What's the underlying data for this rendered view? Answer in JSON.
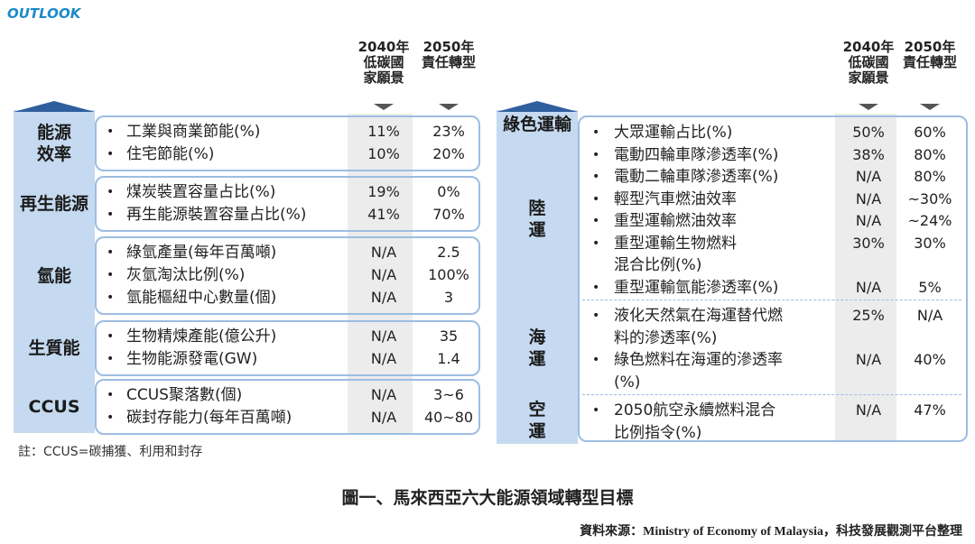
{
  "logo": "OUTLOOK",
  "left": {
    "headers": [
      [
        "2040年",
        "低碳國",
        "家願景"
      ],
      [
        "2050年",
        "責任轉型"
      ]
    ],
    "sections": [
      {
        "label": [
          "能源",
          "效率"
        ],
        "rows": [
          {
            "item": [
              "工業與商業節能(%)"
            ],
            "v2040": "11%",
            "v2050": "23%"
          },
          {
            "item": [
              "住宅節能(%)"
            ],
            "v2040": "10%",
            "v2050": "20%"
          }
        ]
      },
      {
        "label": [
          "再生能源"
        ],
        "rows": [
          {
            "item": [
              "煤炭裝置容量占比(%)"
            ],
            "v2040": "19%",
            "v2050": "0%"
          },
          {
            "item": [
              "再生能源裝置容量占比(%)"
            ],
            "v2040": "41%",
            "v2050": "70%"
          }
        ]
      },
      {
        "label": [
          "氫能"
        ],
        "rows": [
          {
            "item": [
              "綠氫產量(每年百萬噸)"
            ],
            "v2040": "N/A",
            "v2050": "2.5"
          },
          {
            "item": [
              "灰氫淘汰比例(%)"
            ],
            "v2040": "N/A",
            "v2050": "100%"
          },
          {
            "item": [
              "氫能樞紐中心數量(個)"
            ],
            "v2040": "N/A",
            "v2050": "3"
          }
        ]
      },
      {
        "label": [
          "生質能"
        ],
        "rows": [
          {
            "item": [
              "生物精煉產能(億公升)"
            ],
            "v2040": "N/A",
            "v2050": "35"
          },
          {
            "item": [
              "生物能源發電(GW)"
            ],
            "v2040": "N/A",
            "v2050": "1.4"
          }
        ]
      },
      {
        "label": [
          "CCUS"
        ],
        "rows": [
          {
            "item": [
              "CCUS聚落數(個)"
            ],
            "v2040": "N/A",
            "v2050": "3~6"
          },
          {
            "item": [
              "碳封存能力(每年百萬噸)"
            ],
            "v2040": "N/A",
            "v2050": "40~80"
          }
        ]
      }
    ]
  },
  "note": "註：CCUS=碳捕獲、利用和封存",
  "right": {
    "headers": [
      [
        "2040年",
        "低碳國",
        "家願景"
      ],
      [
        "2050年",
        "責任轉型"
      ]
    ],
    "group": "綠色運輸",
    "sections": [
      {
        "label": [
          "陸",
          "運"
        ],
        "rows": [
          {
            "item": [
              "大眾運輸占比(%)"
            ],
            "v2040": "50%",
            "v2050": "60%"
          },
          {
            "item": [
              "電動四輪車隊滲透率(%)"
            ],
            "v2040": "38%",
            "v2050": "80%"
          },
          {
            "item": [
              "電動二輪車隊滲透率(%)"
            ],
            "v2040": "N/A",
            "v2050": "80%"
          },
          {
            "item": [
              "輕型汽車燃油效率"
            ],
            "v2040": "N/A",
            "v2050": "~30%"
          },
          {
            "item": [
              "重型運輸燃油效率"
            ],
            "v2040": "N/A",
            "v2050": "~24%"
          },
          {
            "item": [
              "重型運輸生物燃料",
              "混合比例(%)"
            ],
            "v2040": "30%",
            "v2050": "30%"
          },
          {
            "item": [
              "重型運輸氫能滲透率(%)"
            ],
            "v2040": "N/A",
            "v2050": "5%"
          }
        ]
      },
      {
        "label": [
          "海",
          "運"
        ],
        "rows": [
          {
            "item": [
              "液化天然氣在海運替代燃",
              "料的滲透率(%)"
            ],
            "v2040": "25%",
            "v2050": "N/A"
          },
          {
            "item": [
              "綠色燃料在海運的滲透率",
              "(%)"
            ],
            "v2040": "N/A",
            "v2050": "40%"
          }
        ]
      },
      {
        "label": [
          "空",
          "運"
        ],
        "rows": [
          {
            "item": [
              "2050航空永續燃料混合",
              "比例指令(%)"
            ],
            "v2040": "N/A",
            "v2050": "47%"
          }
        ]
      }
    ]
  },
  "caption": "圖一、馬來西亞六大能源領域轉型目標",
  "source": "資料來源：Ministry of Economy of Malaysia，科技發展觀測平台整理"
}
